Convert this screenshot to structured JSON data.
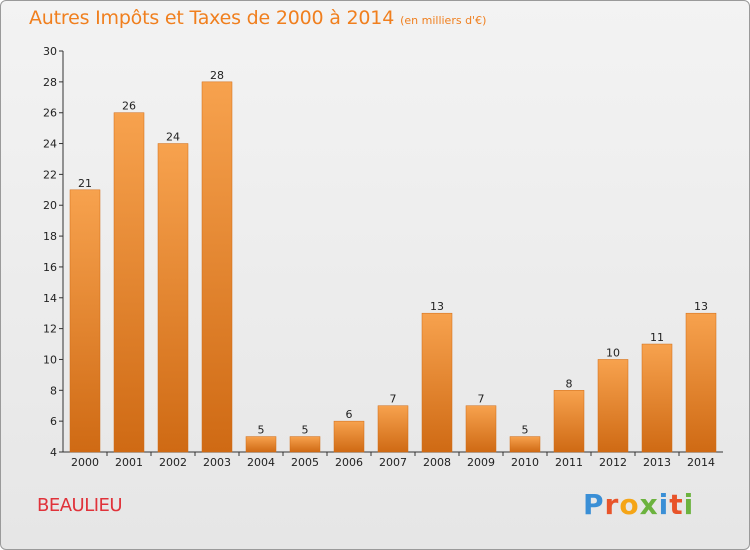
{
  "title": "Autres Impôts et Taxes de 2000 à 2014",
  "subtitle": "(en milliers d'€)",
  "commune": "BEAULIEU",
  "logo_text": "Proxiti",
  "colors": {
    "title": "#f07f1e",
    "bar_light": "#f7a24e",
    "bar_dark": "#cf6a14",
    "commune": "#e0323a",
    "logo_letters": [
      "#3a8fd6",
      "#e8542a",
      "#f5a516",
      "#6cb33f",
      "#3a8fd6",
      "#e8542a",
      "#6cb33f"
    ]
  },
  "chart_data": {
    "type": "bar",
    "title": "Autres Impôts et Taxes de 2000 à 2014",
    "categories": [
      "2000",
      "2001",
      "2002",
      "2003",
      "2004",
      "2005",
      "2006",
      "2007",
      "2008",
      "2009",
      "2010",
      "2011",
      "2012",
      "2013",
      "2014"
    ],
    "values": [
      21,
      26,
      24,
      28,
      5,
      5,
      6,
      7,
      13,
      7,
      5,
      8,
      10,
      11,
      13
    ],
    "ylim": [
      4,
      30
    ],
    "yticks": [
      4,
      6,
      8,
      10,
      12,
      14,
      16,
      18,
      20,
      22,
      24,
      26,
      28,
      30
    ],
    "grid": false,
    "data_labels": true
  }
}
